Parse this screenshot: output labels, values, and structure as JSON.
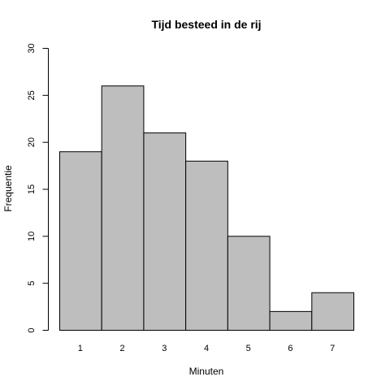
{
  "chart_data": {
    "type": "bar",
    "title": "Tijd besteed in de rij",
    "xlabel": "Minuten",
    "ylabel": "Frequentie",
    "categories": [
      "1",
      "2",
      "3",
      "4",
      "5",
      "6",
      "7"
    ],
    "values": [
      19,
      26,
      21,
      18,
      10,
      2,
      4
    ],
    "ylim": [
      0,
      30
    ],
    "yticks": [
      "0",
      "5",
      "10",
      "15",
      "20",
      "25",
      "30"
    ],
    "grid": false,
    "bar_color": "#bebebe",
    "edge_color": "#000000"
  }
}
